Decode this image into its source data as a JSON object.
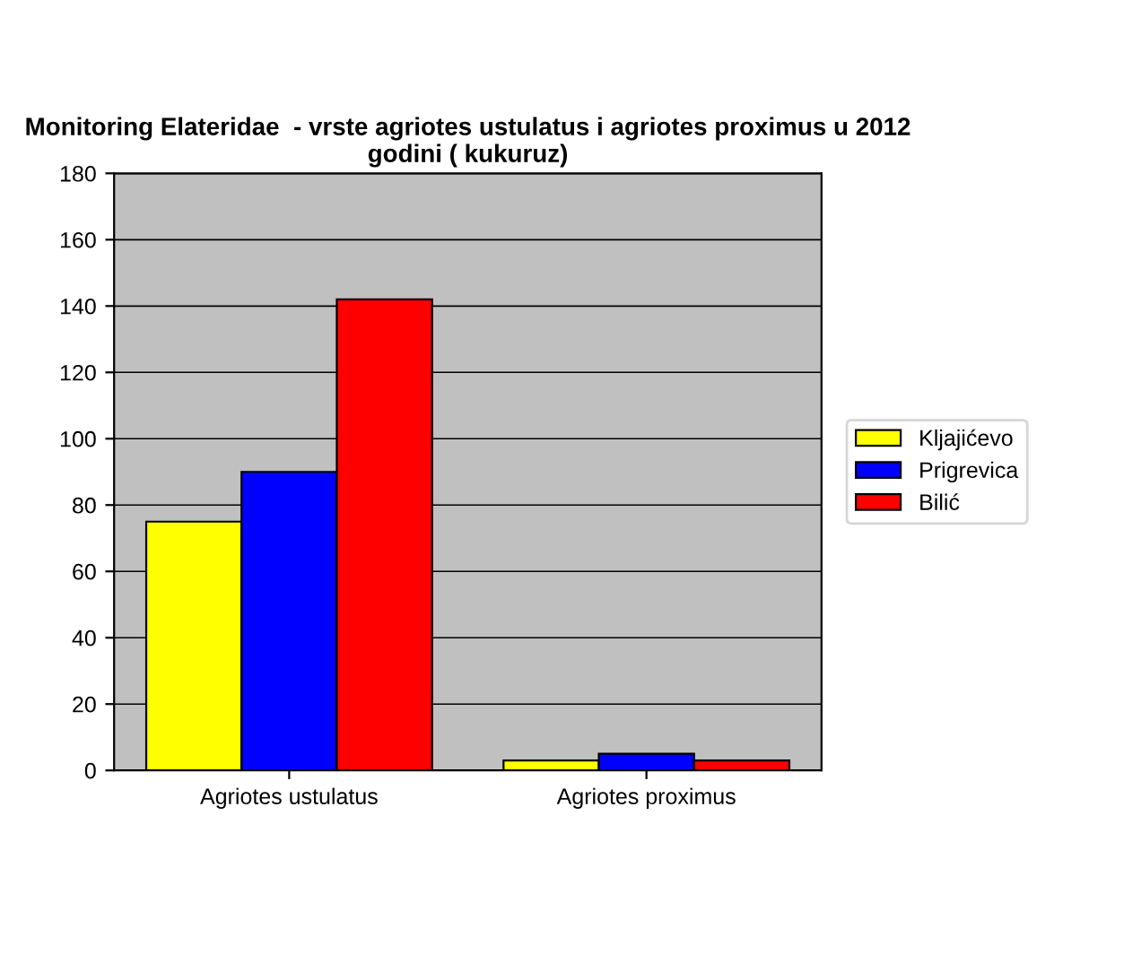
{
  "chart_data": {
    "type": "bar",
    "title": "Monitoring Elateridae  - vrste agriotes ustulatus i agriotes proximus u 2012 godini ( kukuruz)",
    "categories": [
      "Agriotes ustulatus",
      "Agriotes proximus"
    ],
    "series": [
      {
        "name": "Kljajićevo",
        "color": "#ffff00",
        "values": [
          75,
          3
        ]
      },
      {
        "name": "Prigrevica",
        "color": "#0000ff",
        "values": [
          90,
          5
        ]
      },
      {
        "name": "Bilić",
        "color": "#ff0000",
        "values": [
          142,
          3
        ]
      }
    ],
    "ylim": [
      0,
      180
    ],
    "yticks": [
      0,
      20,
      40,
      60,
      80,
      100,
      120,
      140,
      160,
      180
    ],
    "grid": "y",
    "legend": "right"
  }
}
